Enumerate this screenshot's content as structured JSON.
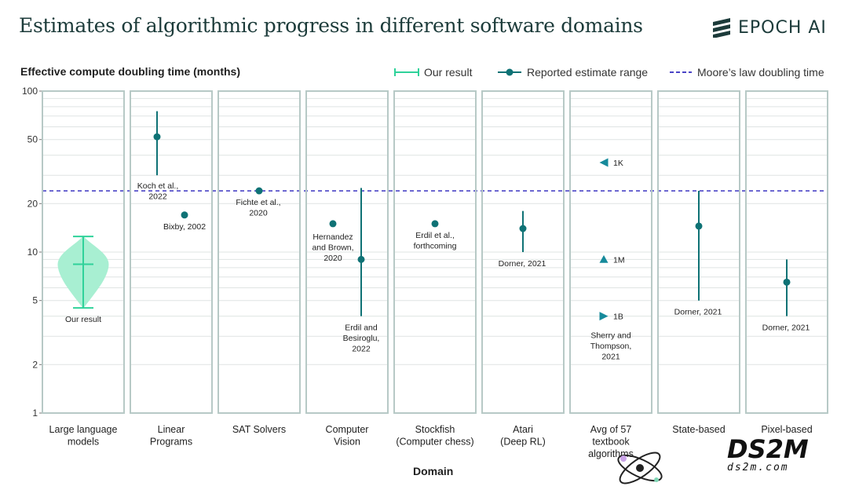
{
  "header": {
    "title": "Estimates of algorithmic progress in different software domains",
    "brand": "EPOCH AI"
  },
  "legend": {
    "our_result": "Our result",
    "reported": "Reported estimate range",
    "moore": "Moore’s law doubling time"
  },
  "watermark": {
    "main": "DS2M",
    "sub": "ds2m.com"
  },
  "colors": {
    "our_result": "#2fd29a",
    "violin_fill": "#a8efd2",
    "reported": "#0f7275",
    "moore": "#4a44c6",
    "panel_border": "#b7c9c6",
    "grid": "#dfe4e3",
    "title": "#1c3b3a"
  },
  "chart_data": {
    "type": "scatter",
    "title": "Estimates of algorithmic progress in different software domains",
    "ylabel": "Effective compute doubling time (months)",
    "xlabel": "Domain",
    "yscale": "log",
    "ylim": [
      1,
      100
    ],
    "yticks": [
      1,
      2,
      5,
      10,
      20,
      50,
      100
    ],
    "grid": true,
    "legend_position": "top-right",
    "moore_law_doubling_time": 24,
    "domains": [
      {
        "label": "Large language models",
        "our_result": {
          "median": 8.4,
          "low": 4.5,
          "high": 12.5,
          "label": "Our result"
        }
      },
      {
        "label": "Linear Programs",
        "points": [
          {
            "value": 52,
            "low": 30,
            "high": 75,
            "label": "Koch et al., 2022"
          },
          {
            "value": 17,
            "label": "Bixby, 2002"
          }
        ]
      },
      {
        "label": "SAT Solvers",
        "points": [
          {
            "value": 24,
            "label": "Fichte et al., 2020"
          }
        ]
      },
      {
        "label": "Computer Vision",
        "points": [
          {
            "value": 15,
            "label": "Hernandez and Brown, 2020"
          },
          {
            "value": 9,
            "low": 4,
            "high": 25,
            "label": "Erdil and Besiroglu, 2022"
          }
        ]
      },
      {
        "label": "Stockfish (Computer chess)",
        "points": [
          {
            "value": 15,
            "label": "Erdil et al., forthcoming"
          }
        ]
      },
      {
        "label": "Atari (Deep RL)",
        "points": [
          {
            "value": 14,
            "low": 10,
            "high": 18,
            "label": "Dorner, 2021"
          }
        ]
      },
      {
        "label": "Avg of 57 textbook algorithms",
        "group_label": "Sherry and Thompson, 2021",
        "points": [
          {
            "value": 36,
            "label": "1K",
            "marker": "triangle-left"
          },
          {
            "value": 9,
            "label": "1M",
            "marker": "triangle-up"
          },
          {
            "value": 4,
            "label": "1B",
            "marker": "triangle-right"
          }
        ]
      },
      {
        "label": "State-based",
        "points": [
          {
            "value": 14.5,
            "low": 5,
            "high": 24,
            "label": "Dorner, 2021"
          }
        ]
      },
      {
        "label": "Pixel-based",
        "points": [
          {
            "value": 6.5,
            "low": 4,
            "high": 9,
            "label": "Dorner, 2021"
          }
        ]
      }
    ]
  }
}
